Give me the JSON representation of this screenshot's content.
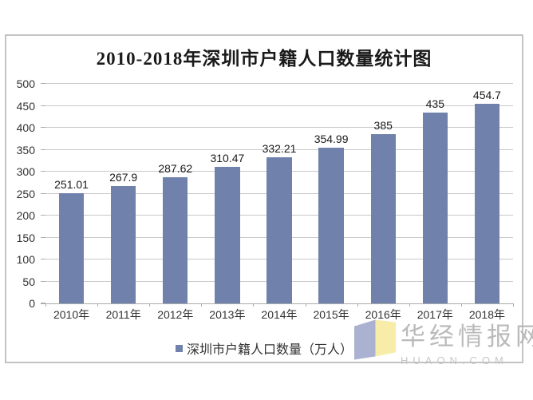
{
  "title": "2010-2018年深圳市户籍人口数量统计图",
  "legend": {
    "label": "深圳市户籍人口数量（万人）"
  },
  "watermark": {
    "cn": "华经情报网",
    "en": "HUAON.COM"
  },
  "colors": {
    "bar": "#7081AC",
    "gridline": "#c9c9c9",
    "axis": "#ababab",
    "logo_blue": "#a2aacd",
    "logo_yellow": "#f7ec9f",
    "watermark_text": "#b3b3b3"
  },
  "chart_data": {
    "type": "bar",
    "title": "2010-2018年深圳市户籍人口数量统计图",
    "categories": [
      "2010年",
      "2011年",
      "2012年",
      "2013年",
      "2014年",
      "2015年",
      "2016年",
      "2017年",
      "2018年"
    ],
    "values": [
      251.01,
      267.9,
      287.62,
      310.47,
      332.21,
      354.99,
      385,
      435,
      454.7
    ],
    "value_labels": [
      "251.01",
      "267.9",
      "287.62",
      "310.47",
      "332.21",
      "354.99",
      "385",
      "435",
      "454.7"
    ],
    "series_name": "深圳市户籍人口数量（万人）",
    "xlabel": "",
    "ylabel": "",
    "ylim": [
      0,
      500
    ],
    "ytick_step": 50,
    "grid": true,
    "legend_position": "bottom"
  }
}
